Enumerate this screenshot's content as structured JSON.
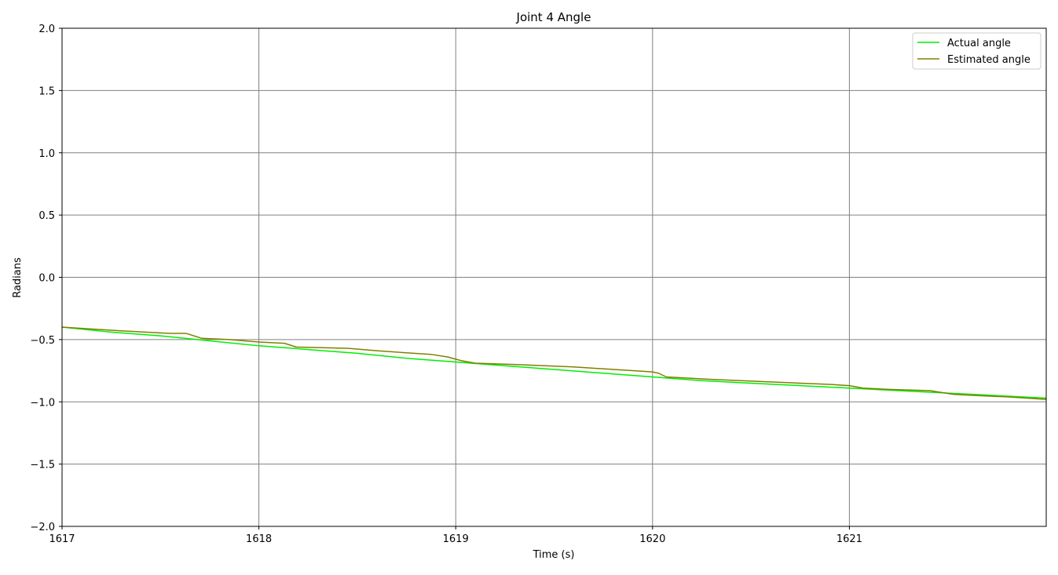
{
  "chart_data": {
    "type": "line",
    "title": "Joint 4 Angle",
    "xlabel": "Time (s)",
    "ylabel": "Radians",
    "xlim": [
      1617,
      1622
    ],
    "ylim": [
      -2.0,
      2.0
    ],
    "x_ticks": [
      1617,
      1618,
      1619,
      1620,
      1621
    ],
    "x_tick_labels": [
      "1617",
      "1618",
      "1619",
      "1620",
      "1621"
    ],
    "y_ticks": [
      2.0,
      1.5,
      1.0,
      0.5,
      0.0,
      -0.5,
      -1.0,
      -1.5,
      -2.0
    ],
    "y_tick_labels": [
      "2.0",
      "1.5",
      "1.0",
      "0.5",
      "0.0",
      "−0.5",
      "−1.0",
      "−1.5",
      "−2.0"
    ],
    "grid": true,
    "legend_position": "top-right",
    "series": [
      {
        "name": "Actual angle",
        "color": "#00ee00",
        "x": [
          1617.0,
          1617.25,
          1617.5,
          1617.75,
          1618.0,
          1618.25,
          1618.5,
          1618.75,
          1619.0,
          1619.25,
          1619.5,
          1619.75,
          1620.0,
          1620.25,
          1620.5,
          1620.75,
          1621.0,
          1621.25,
          1621.5,
          1621.75,
          1622.0
        ],
        "y": [
          -0.4,
          -0.44,
          -0.47,
          -0.51,
          -0.55,
          -0.58,
          -0.61,
          -0.65,
          -0.68,
          -0.71,
          -0.74,
          -0.77,
          -0.8,
          -0.83,
          -0.85,
          -0.87,
          -0.89,
          -0.91,
          -0.93,
          -0.95,
          -0.97
        ]
      },
      {
        "name": "Estimated angle",
        "color": "#808000",
        "x": [
          1617.0,
          1617.1,
          1617.3,
          1617.55,
          1617.63,
          1617.71,
          1617.85,
          1618.0,
          1618.13,
          1618.19,
          1618.45,
          1618.6,
          1618.88,
          1618.96,
          1619.03,
          1619.1,
          1619.3,
          1619.6,
          1619.9,
          1620.0,
          1620.03,
          1620.07,
          1620.3,
          1620.6,
          1620.9,
          1621.0,
          1621.07,
          1621.2,
          1621.41,
          1621.53,
          1621.65,
          1621.8,
          1622.0
        ],
        "y": [
          -0.4,
          -0.41,
          -0.43,
          -0.45,
          -0.45,
          -0.49,
          -0.5,
          -0.52,
          -0.53,
          -0.56,
          -0.57,
          -0.59,
          -0.62,
          -0.64,
          -0.67,
          -0.69,
          -0.7,
          -0.72,
          -0.75,
          -0.76,
          -0.77,
          -0.8,
          -0.82,
          -0.84,
          -0.86,
          -0.87,
          -0.89,
          -0.9,
          -0.91,
          -0.94,
          -0.95,
          -0.96,
          -0.98
        ]
      }
    ]
  }
}
